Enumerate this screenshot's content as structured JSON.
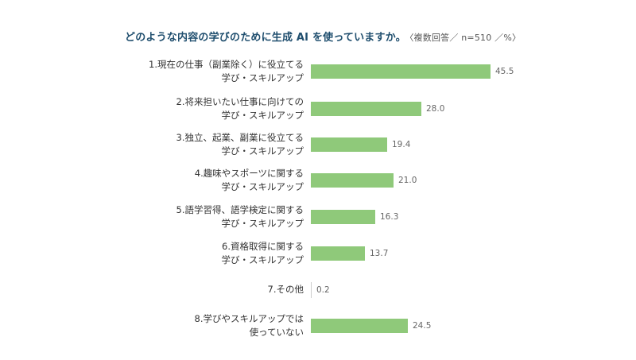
{
  "title": {
    "main": "どのような内容の学びのために生成 AI を使っていますか。",
    "sub": "〈複数回答／ n=510 ／%〉"
  },
  "colors": {
    "bar": "#8fc97a",
    "title": "#1f4e6e",
    "value_text": "#666666"
  },
  "rows": [
    {
      "l1": "1.現在の仕事（副業除く）に役立てる",
      "l2": "学び・スキルアップ",
      "value": "45.5"
    },
    {
      "l1": "2.将来担いたい仕事に向けての",
      "l2": "学び・スキルアップ",
      "value": "28.0"
    },
    {
      "l1": "3.独立、起業、副業に役立てる",
      "l2": "学び・スキルアップ",
      "value": "19.4"
    },
    {
      "l1": "4.趣味やスポーツに関する",
      "l2": "学び・スキルアップ",
      "value": "21.0"
    },
    {
      "l1": "5.語学習得、語学検定に関する",
      "l2": "学び・スキルアップ",
      "value": "16.3"
    },
    {
      "l1": "6.資格取得に関する",
      "l2": "学び・スキルアップ",
      "value": "13.7"
    },
    {
      "l1": "7.その他",
      "l2": "",
      "value": "0.2"
    },
    {
      "l1": "8.学びやスキルアップでは",
      "l2": "使っていない",
      "value": "24.5"
    }
  ],
  "chart_data": {
    "type": "bar",
    "orientation": "horizontal",
    "title": "どのような内容の学びのために生成 AI を使っていますか。〈複数回答／ n=510 ／%〉",
    "categories": [
      "1.現在の仕事（副業除く）に役立てる学び・スキルアップ",
      "2.将来担いたい仕事に向けての学び・スキルアップ",
      "3.独立、起業、副業に役立てる学び・スキルアップ",
      "4.趣味やスポーツに関する学び・スキルアップ",
      "5.語学習得、語学検定に関する学び・スキルアップ",
      "6.資格取得に関する学び・スキルアップ",
      "7.その他",
      "8.学びやスキルアップでは使っていない"
    ],
    "values": [
      45.5,
      28.0,
      19.4,
      21.0,
      16.3,
      13.7,
      0.2,
      24.5
    ],
    "xlabel": "",
    "ylabel": "",
    "unit": "%",
    "grid": false,
    "legend": null
  }
}
